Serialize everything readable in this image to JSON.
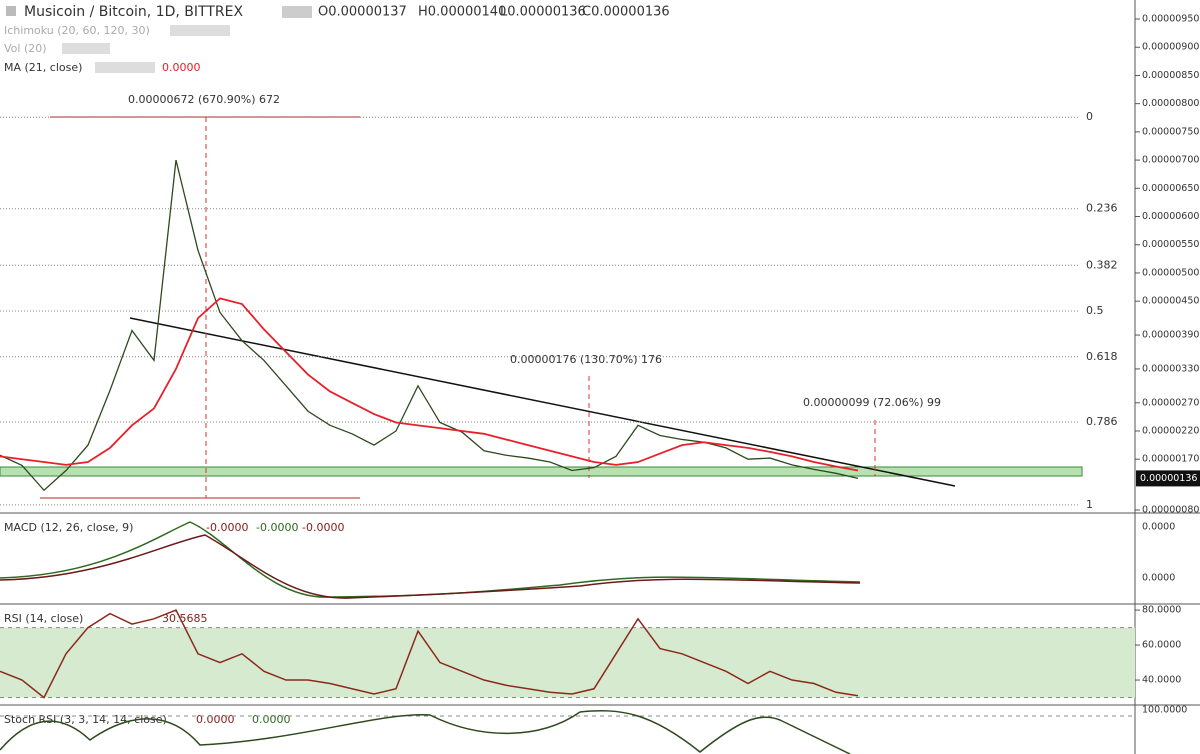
{
  "header": {
    "symbol": "Musicoin / Bitcoin, 1D, BITTREX",
    "ohlc": [
      "O0.00000137",
      "H0.00000140",
      "L0.00000136",
      "C0.00000136"
    ]
  },
  "studies": [
    {
      "label": "Ichimoku (20, 60, 120, 30)"
    },
    {
      "label": "Vol (20)"
    },
    {
      "label": "MA (21, close)",
      "value": "0.0000"
    }
  ],
  "main": {
    "ylim": [
      8e-07,
      9.5e-06
    ],
    "yticks": [
      {
        "value": 9.5e-06,
        "label": "0.00000950"
      },
      {
        "value": 9e-06,
        "label": "0.00000900"
      },
      {
        "value": 8.5e-06,
        "label": "0.00000850"
      },
      {
        "value": 8e-06,
        "label": "0.00000800"
      },
      {
        "value": 7.5e-06,
        "label": "0.00000750"
      },
      {
        "value": 7e-06,
        "label": "0.00000700"
      },
      {
        "value": 6.5e-06,
        "label": "0.00000650"
      },
      {
        "value": 6e-06,
        "label": "0.00000600"
      },
      {
        "value": 5.5e-06,
        "label": "0.00000550"
      },
      {
        "value": 5e-06,
        "label": "0.00000500"
      },
      {
        "value": 4.5e-06,
        "label": "0.00000450"
      },
      {
        "value": 3.9e-06,
        "label": "0.00000390"
      },
      {
        "value": 3.3e-06,
        "label": "0.00000330"
      },
      {
        "value": 2.7e-06,
        "label": "0.00000270"
      },
      {
        "value": 2.2e-06,
        "label": "0.00000220"
      },
      {
        "value": 1.7e-06,
        "label": "0.00000170"
      },
      {
        "value": 8e-07,
        "label": "0.00000080"
      }
    ],
    "last_price": {
      "value": 1.36e-06,
      "label": "0.00000136"
    },
    "series": [
      {
        "color": "#2d4a1e",
        "values": [
          1.77e-06,
          1.59e-06,
          1.15e-06,
          1.5e-06,
          1.95e-06,
          2.92e-06,
          3.98e-06,
          3.45e-06,
          7e-06,
          5.4e-06,
          4.3e-06,
          3.8e-06,
          3.45e-06,
          3e-06,
          2.55e-06,
          2.3e-06,
          2.15e-06,
          1.95e-06,
          2.2e-06,
          3e-06,
          2.35e-06,
          2.18e-06,
          1.85e-06,
          1.77e-06,
          1.72e-06,
          1.65e-06,
          1.5e-06,
          1.55e-06,
          1.75e-06,
          2.3e-06,
          2.12e-06,
          2.05e-06,
          2e-06,
          1.9e-06,
          1.7e-06,
          1.72e-06,
          1.6e-06,
          1.52e-06,
          1.45e-06,
          1.36e-06
        ]
      },
      {
        "color": "#e8202a",
        "values": [
          1.75e-06,
          1.7e-06,
          1.65e-06,
          1.6e-06,
          1.65e-06,
          1.9e-06,
          2.3e-06,
          2.6e-06,
          3.3e-06,
          4.2e-06,
          4.55e-06,
          4.45e-06,
          4e-06,
          3.6e-06,
          3.2e-06,
          2.9e-06,
          2.7e-06,
          2.5e-06,
          2.35e-06,
          2.3e-06,
          2.25e-06,
          2.2e-06,
          2.15e-06,
          2.05e-06,
          1.95e-06,
          1.85e-06,
          1.75e-06,
          1.65e-06,
          1.6e-06,
          1.65e-06,
          1.8e-06,
          1.95e-06,
          2e-06,
          1.95e-06,
          1.9e-06,
          1.83e-06,
          1.75e-06,
          1.65e-06,
          1.57e-06,
          1.5e-06
        ]
      }
    ]
  },
  "fib": {
    "range": [
      7.76e-06,
      8.9e-07
    ],
    "levels": [
      0,
      0.236,
      0.382,
      0.5,
      0.618,
      0.786,
      1
    ]
  },
  "annotations": [
    "0.00000672 (670.90%) 672",
    "0.00000176 (130.70%) 176",
    "0.00000099 (72.06%) 99"
  ],
  "macd": {
    "label": "MACD (12, 26, close, 9)",
    "values": [
      "-0.0000",
      "-0.0000",
      "-0.0000"
    ],
    "yticks": [
      "0.0000",
      "0.0000"
    ]
  },
  "rsi": {
    "label": "RSI (14, close)",
    "value": "30.5685",
    "ylim": [
      26.3,
      82.9
    ],
    "band": [
      30,
      70
    ],
    "yticks": [
      {
        "value": 80,
        "label": "80.0000"
      },
      {
        "value": 60,
        "label": "60.0000"
      },
      {
        "value": 40,
        "label": "40.0000"
      }
    ],
    "values": [
      45,
      40,
      30,
      55,
      70,
      78,
      72,
      75,
      80,
      55,
      50,
      55,
      45,
      40,
      40,
      38,
      35,
      32,
      35,
      68,
      50,
      45,
      40,
      37,
      35,
      33,
      32,
      35,
      55,
      75,
      58,
      55,
      50,
      45,
      38,
      45,
      40,
      38,
      33,
      31
    ]
  },
  "stoch": {
    "label": "Stoch RSI (3, 3, 14, 14, close)",
    "values": [
      "0.0000",
      "0.0000"
    ],
    "yticks": [
      "100.0000"
    ]
  }
}
